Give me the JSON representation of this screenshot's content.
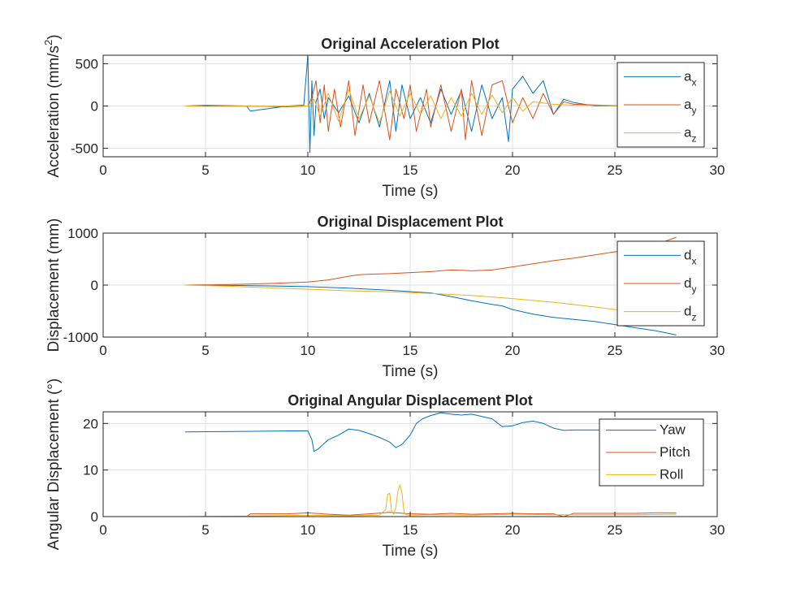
{
  "colors": {
    "blue": "#0072BD",
    "orange": "#D95319",
    "yellow": "#EDB120"
  },
  "chart_data": [
    {
      "type": "line",
      "title": "Original Acceleration Plot",
      "xlabel": "Time (s)",
      "ylabel": "Acceleration (mm/s",
      "ylabel_sup": "2",
      "ylabel_close": ")",
      "xlim": [
        0,
        30
      ],
      "ylim": [
        -600,
        600
      ],
      "xticks": [
        0,
        5,
        10,
        15,
        20,
        25,
        30
      ],
      "yticks": [
        -500,
        0,
        500
      ],
      "grid": true,
      "legend_position": "top-right",
      "legend": [
        {
          "base": "a",
          "sub": "x"
        },
        {
          "base": "a",
          "sub": "y"
        },
        {
          "base": "a",
          "sub": "z"
        }
      ],
      "series": [
        {
          "name": "ax",
          "color": "#0072BD",
          "x": [
            4.0,
            5.0,
            7.0,
            7.2,
            9.0,
            9.8,
            10.0,
            10.1,
            10.2,
            10.3,
            10.4,
            10.6,
            10.8,
            11.0,
            11.5,
            12.0,
            12.5,
            13.0,
            13.5,
            14.0,
            14.3,
            14.6,
            15.0,
            15.5,
            16.0,
            16.5,
            17.0,
            17.5,
            18.0,
            18.5,
            19.0,
            19.5,
            19.8,
            20.0,
            20.5,
            21.0,
            21.5,
            22.0,
            22.5,
            23.0,
            24.0,
            25.0,
            25.5
          ],
          "y": [
            0,
            0,
            0,
            -60,
            0,
            10,
            600,
            -550,
            300,
            -350,
            50,
            200,
            -150,
            100,
            -80,
            120,
            -200,
            150,
            -250,
            300,
            -300,
            250,
            -150,
            100,
            -200,
            200,
            -100,
            180,
            -300,
            250,
            -150,
            100,
            -420,
            200,
            350,
            150,
            300,
            -100,
            80,
            40,
            0,
            0,
            0
          ]
        },
        {
          "name": "ay",
          "color": "#D95319",
          "x": [
            4.0,
            5.0,
            9.0,
            10.0,
            10.2,
            10.4,
            10.6,
            10.8,
            11.0,
            11.3,
            11.6,
            12.0,
            12.3,
            12.7,
            13.0,
            13.5,
            14.0,
            14.3,
            14.7,
            15.0,
            15.3,
            15.8,
            16.0,
            16.5,
            17.0,
            17.5,
            17.7,
            18.0,
            18.5,
            19.0,
            19.5,
            20.0,
            20.5,
            21.0,
            21.5,
            22.0,
            22.5,
            23.0,
            25.5
          ],
          "y": [
            0,
            10,
            -10,
            0,
            100,
            300,
            -200,
            250,
            -300,
            200,
            -250,
            300,
            -350,
            250,
            -200,
            300,
            -400,
            200,
            -150,
            250,
            -300,
            200,
            -250,
            250,
            -300,
            200,
            -400,
            300,
            -350,
            250,
            300,
            -200,
            100,
            -150,
            150,
            -100,
            50,
            20,
            0
          ]
        },
        {
          "name": "az",
          "color": "#EDB120",
          "x": [
            4.0,
            5.0,
            9.0,
            10.0,
            10.3,
            10.6,
            11.0,
            11.5,
            12.0,
            12.5,
            13.0,
            13.5,
            14.0,
            14.5,
            15.0,
            15.5,
            16.0,
            16.5,
            17.0,
            17.5,
            18.0,
            18.5,
            19.0,
            19.5,
            20.0,
            20.5,
            21.0,
            22.0,
            23.0,
            25.5
          ],
          "y": [
            0,
            -5,
            0,
            0,
            80,
            -120,
            150,
            -180,
            200,
            -150,
            120,
            -200,
            180,
            -120,
            150,
            -100,
            120,
            -150,
            100,
            -120,
            150,
            -100,
            130,
            -80,
            100,
            -60,
            50,
            20,
            10,
            0
          ]
        }
      ]
    },
    {
      "type": "line",
      "title": "Original Displacement Plot",
      "xlabel": "Time (s)",
      "ylabel": "Displacement (mm)",
      "xlim": [
        0,
        30
      ],
      "ylim": [
        -1000,
        1000
      ],
      "xticks": [
        0,
        5,
        10,
        15,
        20,
        25,
        30
      ],
      "yticks": [
        -1000,
        0,
        1000
      ],
      "grid": true,
      "legend_position": "top-right",
      "legend": [
        {
          "base": "d",
          "sub": "x"
        },
        {
          "base": "d",
          "sub": "y"
        },
        {
          "base": "d",
          "sub": "z"
        }
      ],
      "series": [
        {
          "name": "dx",
          "color": "#0072BD",
          "x": [
            4.0,
            6.0,
            8.0,
            10.0,
            12.0,
            14.0,
            16.0,
            17.0,
            18.0,
            19.0,
            19.5,
            20.0,
            21.0,
            22.0,
            23.0,
            24.0,
            25.0,
            26.0,
            27.0,
            28.0
          ],
          "y": [
            0,
            -5,
            -15,
            -30,
            -60,
            -100,
            -150,
            -220,
            -300,
            -370,
            -400,
            -470,
            -560,
            -620,
            -660,
            -700,
            -760,
            -820,
            -880,
            -960
          ]
        },
        {
          "name": "dy",
          "color": "#D95319",
          "x": [
            4.0,
            6.0,
            8.0,
            10.0,
            11.0,
            12.0,
            12.5,
            13.0,
            14.0,
            15.0,
            16.0,
            17.0,
            17.5,
            18.0,
            19.0,
            20.0,
            21.0,
            22.0,
            23.0,
            24.0,
            25.0,
            26.0,
            27.0,
            28.0
          ],
          "y": [
            0,
            10,
            30,
            60,
            100,
            170,
            200,
            210,
            220,
            240,
            260,
            290,
            285,
            275,
            290,
            350,
            410,
            470,
            520,
            580,
            640,
            700,
            780,
            920
          ]
        },
        {
          "name": "dz",
          "color": "#EDB120",
          "x": [
            4.0,
            6.0,
            8.0,
            10.0,
            12.0,
            14.0,
            16.0,
            18.0,
            20.0,
            22.0,
            24.0,
            25.0,
            26.0,
            27.0,
            28.0
          ],
          "y": [
            0,
            -20,
            -50,
            -80,
            -110,
            -130,
            -160,
            -200,
            -260,
            -330,
            -420,
            -470,
            -490,
            -495,
            -500
          ]
        }
      ]
    },
    {
      "type": "line",
      "title": "Original Angular Displacement Plot",
      "xlabel": "Time (s)",
      "ylabel": "Angular Displacement (°)",
      "xlim": [
        0,
        30
      ],
      "ylim": [
        0,
        22.5
      ],
      "xticks": [
        0,
        5,
        10,
        15,
        20,
        25,
        30
      ],
      "yticks": [
        0,
        10,
        20
      ],
      "grid": true,
      "legend_position": "top-right",
      "legend": [
        {
          "base": "Yaw",
          "sub": ""
        },
        {
          "base": "Pitch",
          "sub": ""
        },
        {
          "base": "Roll",
          "sub": ""
        }
      ],
      "series": [
        {
          "name": "Yaw",
          "color": "#0072BD",
          "x": [
            4.0,
            7.0,
            9.0,
            10.0,
            10.2,
            10.3,
            10.5,
            11.0,
            11.5,
            12.0,
            12.5,
            13.0,
            13.5,
            14.0,
            14.3,
            14.6,
            15.0,
            15.3,
            15.6,
            16.0,
            16.5,
            17.0,
            17.5,
            18.0,
            18.5,
            19.0,
            19.5,
            20.0,
            20.5,
            21.0,
            21.5,
            22.0,
            22.5,
            23.0,
            24.0,
            25.0,
            26.0,
            27.0,
            28.0
          ],
          "y": [
            18.2,
            18.3,
            18.4,
            18.4,
            16.5,
            14.0,
            14.5,
            16.5,
            17.5,
            18.8,
            18.5,
            17.8,
            17.0,
            16.0,
            14.8,
            15.5,
            17.5,
            20.0,
            21.0,
            21.7,
            22.3,
            22.0,
            21.8,
            22.0,
            21.5,
            21.0,
            19.3,
            19.5,
            20.2,
            20.5,
            20.0,
            19.0,
            18.5,
            18.6,
            18.6,
            18.6,
            18.6,
            18.7,
            18.7
          ]
        },
        {
          "name": "Pitch",
          "color": "#D95319",
          "x": [
            4.0,
            7.0,
            7.2,
            9.0,
            10.0,
            11.0,
            12.0,
            13.0,
            14.0,
            15.0,
            16.0,
            17.0,
            18.0,
            19.0,
            20.0,
            21.0,
            22.0,
            22.5,
            23.0,
            24.0,
            25.0,
            26.0,
            27.0,
            28.0
          ],
          "y": [
            0.0,
            0.0,
            0.6,
            0.6,
            0.8,
            0.5,
            0.3,
            0.6,
            0.9,
            0.6,
            0.5,
            0.7,
            0.5,
            0.6,
            0.7,
            0.6,
            0.6,
            0.0,
            0.7,
            0.7,
            0.7,
            0.7,
            0.8,
            0.8
          ]
        },
        {
          "name": "Roll",
          "color": "#EDB120",
          "x": [
            4.0,
            7.0,
            10.0,
            12.0,
            13.5,
            13.8,
            13.9,
            14.0,
            14.1,
            14.2,
            14.3,
            14.4,
            14.5,
            14.6,
            14.7,
            14.8,
            15.0,
            16.0,
            18.0,
            20.0,
            22.0,
            24.0,
            26.0,
            28.0
          ],
          "y": [
            0.0,
            0.1,
            0.3,
            0.2,
            0.3,
            1.5,
            4.8,
            5.0,
            1.0,
            0.5,
            2.0,
            5.5,
            6.8,
            5.0,
            1.0,
            0.4,
            0.3,
            0.4,
            0.3,
            0.5,
            0.4,
            0.4,
            0.4,
            0.5
          ]
        }
      ]
    }
  ]
}
